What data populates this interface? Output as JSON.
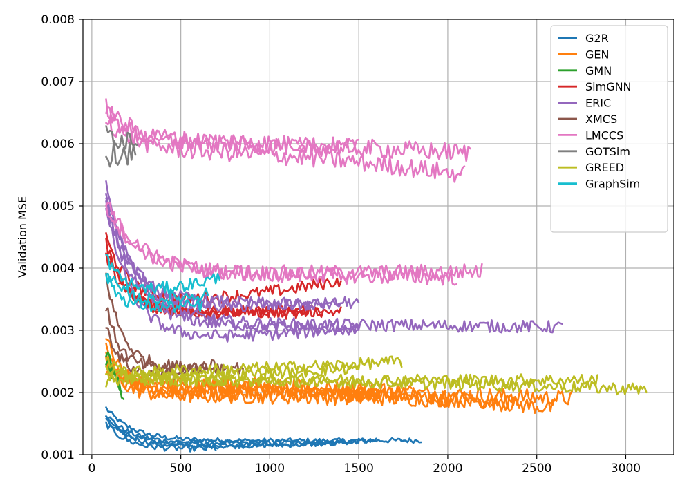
{
  "chart_data": {
    "type": "line",
    "title": "",
    "xlabel": "",
    "ylabel": "Validation MSE",
    "xlim": [
      -50,
      3270
    ],
    "ylim": [
      0.001,
      0.008
    ],
    "grid": true,
    "legend_position": "top-right",
    "x_ticks": [
      {
        "value": 0,
        "label": "0"
      },
      {
        "value": 500,
        "label": "500"
      },
      {
        "value": 1000,
        "label": "1000"
      },
      {
        "value": 1500,
        "label": "1500"
      },
      {
        "value": 2000,
        "label": "2000"
      },
      {
        "value": 2500,
        "label": "2500"
      },
      {
        "value": 3000,
        "label": "3000"
      }
    ],
    "y_ticks": [
      {
        "value": 0.001,
        "label": "0.001"
      },
      {
        "value": 0.002,
        "label": "0.002"
      },
      {
        "value": 0.003,
        "label": "0.003"
      },
      {
        "value": 0.004,
        "label": "0.004"
      },
      {
        "value": 0.005,
        "label": "0.005"
      },
      {
        "value": 0.006,
        "label": "0.006"
      },
      {
        "value": 0.007,
        "label": "0.007"
      },
      {
        "value": 0.008,
        "label": "0.008"
      }
    ],
    "series": [
      {
        "name": "G2R",
        "color": "#1f77b4",
        "runs": [
          {
            "x_start": 80,
            "x_end": 1860,
            "start": 0.00175,
            "plateau": 0.00122,
            "end": 0.00123,
            "tau": 150,
            "noise": 4e-05
          },
          {
            "x_start": 80,
            "x_end": 1600,
            "start": 0.00165,
            "plateau": 0.00118,
            "end": 0.00122,
            "tau": 140,
            "noise": 4e-05
          },
          {
            "x_start": 80,
            "x_end": 1500,
            "start": 0.0016,
            "plateau": 0.00115,
            "end": 0.0012,
            "tau": 130,
            "noise": 4e-05
          },
          {
            "x_start": 80,
            "x_end": 1400,
            "start": 0.00155,
            "plateau": 0.00112,
            "end": 0.00118,
            "tau": 140,
            "noise": 4e-05
          },
          {
            "x_start": 80,
            "x_end": 700,
            "start": 0.0015,
            "plateau": 0.00108,
            "end": 0.0011,
            "tau": 120,
            "noise": 5e-05
          }
        ]
      },
      {
        "name": "GEN",
        "color": "#ff7f0e",
        "runs": [
          {
            "x_start": 80,
            "x_end": 2700,
            "start": 0.0029,
            "plateau": 0.00205,
            "end": 0.0019,
            "tau": 80,
            "noise": 0.00013
          },
          {
            "x_start": 80,
            "x_end": 2600,
            "start": 0.0027,
            "plateau": 0.0021,
            "end": 0.00175,
            "tau": 80,
            "noise": 0.00013
          },
          {
            "x_start": 80,
            "x_end": 2400,
            "start": 0.00255,
            "plateau": 0.00195,
            "end": 0.00185,
            "tau": 90,
            "noise": 0.00012
          },
          {
            "x_start": 80,
            "x_end": 1600,
            "start": 0.0025,
            "plateau": 0.002,
            "end": 0.00195,
            "tau": 90,
            "noise": 0.00012
          },
          {
            "x_start": 80,
            "x_end": 1800,
            "start": 0.0024,
            "plateau": 0.00215,
            "end": 0.002,
            "tau": 90,
            "noise": 0.00013
          }
        ]
      },
      {
        "name": "GMN",
        "color": "#2ca02c",
        "runs": [
          {
            "x_start": 80,
            "x_end": 180,
            "start": 0.0027,
            "plateau": 0.00205,
            "end": 0.00185,
            "tau": 50,
            "noise": 0.00012
          },
          {
            "x_start": 80,
            "x_end": 170,
            "start": 0.0025,
            "plateau": 0.00215,
            "end": 0.00195,
            "tau": 50,
            "noise": 0.00012
          }
        ]
      },
      {
        "name": "SimGNN",
        "color": "#d62728",
        "runs": [
          {
            "x_start": 80,
            "x_end": 1400,
            "start": 0.0045,
            "plateau": 0.00345,
            "end": 0.0038,
            "tau": 120,
            "noise": 0.0001
          },
          {
            "x_start": 80,
            "x_end": 1300,
            "start": 0.0044,
            "plateau": 0.00325,
            "end": 0.00335,
            "tau": 120,
            "noise": 0.0001
          },
          {
            "x_start": 80,
            "x_end": 1400,
            "start": 0.0043,
            "plateau": 0.0033,
            "end": 0.0033,
            "tau": 110,
            "noise": 9e-05
          },
          {
            "x_start": 80,
            "x_end": 1200,
            "start": 0.0042,
            "plateau": 0.00335,
            "end": 0.00325,
            "tau": 110,
            "noise": 9e-05
          }
        ]
      },
      {
        "name": "ERIC",
        "color": "#9467bd",
        "runs": [
          {
            "x_start": 80,
            "x_end": 2650,
            "start": 0.0053,
            "plateau": 0.0031,
            "end": 0.00305,
            "tau": 180,
            "noise": 0.0001
          },
          {
            "x_start": 80,
            "x_end": 1500,
            "start": 0.0052,
            "plateau": 0.00335,
            "end": 0.00345,
            "tau": 150,
            "noise": 0.0001
          },
          {
            "x_start": 80,
            "x_end": 1500,
            "start": 0.0051,
            "plateau": 0.0031,
            "end": 0.003,
            "tau": 150,
            "noise": 0.0001
          },
          {
            "x_start": 80,
            "x_end": 1500,
            "start": 0.005,
            "plateau": 0.00285,
            "end": 0.00305,
            "tau": 140,
            "noise": 0.0001
          },
          {
            "x_start": 80,
            "x_end": 1400,
            "start": 0.005,
            "plateau": 0.00345,
            "end": 0.0034,
            "tau": 150,
            "noise": 0.0001
          }
        ]
      },
      {
        "name": "XMCS",
        "color": "#8c564b",
        "runs": [
          {
            "x_start": 80,
            "x_end": 860,
            "start": 0.0039,
            "plateau": 0.0024,
            "end": 0.0024,
            "tau": 90,
            "noise": 0.0001
          },
          {
            "x_start": 80,
            "x_end": 700,
            "start": 0.0034,
            "plateau": 0.00235,
            "end": 0.00245,
            "tau": 80,
            "noise": 0.0001
          },
          {
            "x_start": 80,
            "x_end": 650,
            "start": 0.0031,
            "plateau": 0.00225,
            "end": 0.00235,
            "tau": 80,
            "noise": 9e-05
          }
        ]
      },
      {
        "name": "LMCCS",
        "color": "#e377c2",
        "runs": [
          {
            "x_start": 80,
            "x_end": 2200,
            "start": 0.00505,
            "plateau": 0.0039,
            "end": 0.00395,
            "tau": 200,
            "noise": 0.00013
          },
          {
            "x_start": 80,
            "x_end": 2050,
            "start": 0.005,
            "plateau": 0.0039,
            "end": 0.00385,
            "tau": 200,
            "noise": 0.00013
          },
          {
            "x_start": 80,
            "x_end": 2130,
            "start": 0.0065,
            "plateau": 0.006,
            "end": 0.00585,
            "tau": 150,
            "noise": 0.00015
          },
          {
            "x_start": 80,
            "x_end": 2100,
            "start": 0.0064,
            "plateau": 0.0059,
            "end": 0.0055,
            "tau": 150,
            "noise": 0.00015
          },
          {
            "x_start": 80,
            "x_end": 1500,
            "start": 0.0066,
            "plateau": 0.00605,
            "end": 0.00595,
            "tau": 150,
            "noise": 0.00014
          }
        ]
      },
      {
        "name": "GOTSim",
        "color": "#7f7f7f",
        "runs": [
          {
            "x_start": 80,
            "x_end": 260,
            "start": 0.0062,
            "plateau": 0.00605,
            "end": 0.0061,
            "tau": 60,
            "noise": 0.0002
          },
          {
            "x_start": 80,
            "x_end": 250,
            "start": 0.0058,
            "plateau": 0.0059,
            "end": 0.00585,
            "tau": 60,
            "noise": 0.0002
          }
        ]
      },
      {
        "name": "GREED",
        "color": "#bcbd22",
        "runs": [
          {
            "x_start": 80,
            "x_end": 3120,
            "start": 0.0025,
            "plateau": 0.0022,
            "end": 0.00205,
            "tau": 100,
            "noise": 0.0001
          },
          {
            "x_start": 80,
            "x_end": 2850,
            "start": 0.0024,
            "plateau": 0.0022,
            "end": 0.0022,
            "tau": 100,
            "noise": 0.0001
          },
          {
            "x_start": 80,
            "x_end": 1750,
            "start": 0.00225,
            "plateau": 0.00235,
            "end": 0.0025,
            "tau": 100,
            "noise": 0.0001
          },
          {
            "x_start": 80,
            "x_end": 1500,
            "start": 0.00215,
            "plateau": 0.00225,
            "end": 0.0024,
            "tau": 100,
            "noise": 0.0001
          }
        ]
      },
      {
        "name": "GraphSim",
        "color": "#17becf",
        "runs": [
          {
            "x_start": 80,
            "x_end": 720,
            "start": 0.0042,
            "plateau": 0.0036,
            "end": 0.00385,
            "tau": 90,
            "noise": 0.0001
          },
          {
            "x_start": 80,
            "x_end": 660,
            "start": 0.004,
            "plateau": 0.00345,
            "end": 0.0036,
            "tau": 80,
            "noise": 0.0001
          },
          {
            "x_start": 80,
            "x_end": 620,
            "start": 0.0039,
            "plateau": 0.00335,
            "end": 0.0034,
            "tau": 80,
            "noise": 0.0001
          }
        ]
      }
    ]
  }
}
